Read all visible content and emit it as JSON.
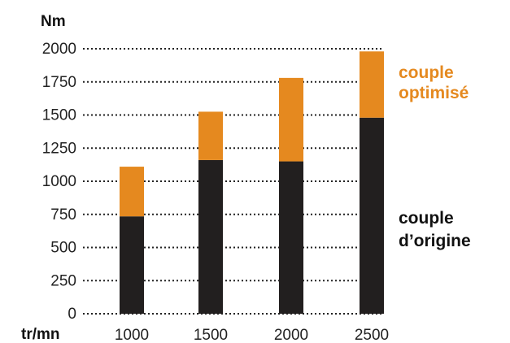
{
  "chart_data": {
    "type": "bar",
    "stacked": true,
    "categories": [
      "1000",
      "1500",
      "2000",
      "2500"
    ],
    "series": [
      {
        "name": "couple d’origine",
        "values": [
          735,
          1160,
          1150,
          1480
        ],
        "color": "#221f1f"
      },
      {
        "name": "couple optimisé",
        "values": [
          375,
          365,
          630,
          500
        ],
        "color": "#e5891f"
      }
    ],
    "ylabel": "Nm",
    "xlabel": "tr/mn",
    "yticks": [
      0,
      250,
      500,
      750,
      1000,
      1250,
      1500,
      1750,
      2000
    ],
    "ylim": [
      0,
      2000
    ],
    "grid": true,
    "legend_position": "right"
  },
  "labels": {
    "y_unit": "Nm",
    "x_unit": "tr/mn",
    "legend_optimized_line1": "couple",
    "legend_optimized_line2": "optimisé",
    "legend_original_line1": "couple",
    "legend_original_line2": "d’origine"
  }
}
